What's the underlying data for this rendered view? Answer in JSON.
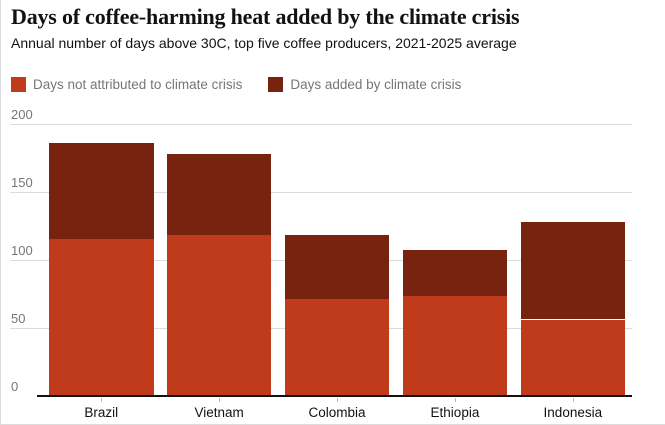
{
  "header": {
    "title": "Days of coffee-harming heat added by the climate crisis",
    "subtitle": "Annual number of days above 30C, top five coffee producers, 2021-2025 average"
  },
  "legend": {
    "items": [
      {
        "label": "Days not attributed to climate crisis",
        "color": "#c03b1c"
      },
      {
        "label": "Days added by climate crisis",
        "color": "#772310"
      }
    ]
  },
  "chart_data": {
    "type": "bar",
    "stacked": true,
    "title": "Days of coffee-harming heat added by the climate crisis",
    "subtitle": "Annual number of days above 30C, top five coffee producers, 2021-2025 average",
    "categories": [
      "Brazil",
      "Vietnam",
      "Colombia",
      "Ethiopia",
      "Indonesia"
    ],
    "series": [
      {
        "name": "Days not attributed to climate crisis",
        "color": "#c03b1c",
        "values": [
          115,
          118,
          71,
          73,
          56
        ]
      },
      {
        "name": "Days added by climate crisis",
        "color": "#772310",
        "values": [
          71,
          60,
          47,
          34,
          72
        ]
      }
    ],
    "totals": [
      186,
      178,
      118,
      107,
      128
    ],
    "xlabel": "",
    "ylabel": "",
    "ylim": [
      0,
      200
    ],
    "yticks": [
      0,
      50,
      100,
      150,
      200
    ],
    "grid": true,
    "legend_position": "top",
    "axis_color": "#121212",
    "gridline_color": "#dcdcdc",
    "tick_label_color": "#767676"
  }
}
